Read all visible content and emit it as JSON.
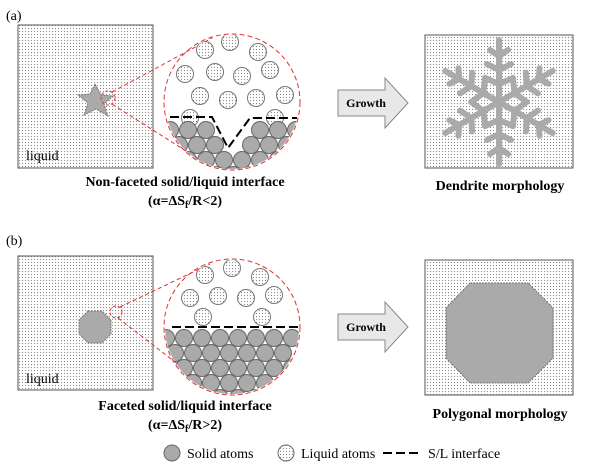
{
  "panel_a": {
    "label": "(a)",
    "box_label": "liquid",
    "arrow_label": "Growth",
    "caption": "Non-faceted solid/liquid interface",
    "formula": {
      "pre": "(α=ΔS",
      "sub": "f",
      "post": "/R<2)"
    },
    "result": "Dendrite morphology"
  },
  "panel_b": {
    "label": "(b)",
    "box_label": "liquid",
    "arrow_label": "Growth",
    "caption": "Faceted solid/liquid interface",
    "formula": {
      "pre": "(α=ΔS",
      "sub": "f",
      "post": "/R>2)"
    },
    "result": "Polygonal morphology"
  },
  "legend": {
    "solid": "Solid atoms",
    "liquid": "Liquid atoms",
    "interface": "S/L interface"
  }
}
